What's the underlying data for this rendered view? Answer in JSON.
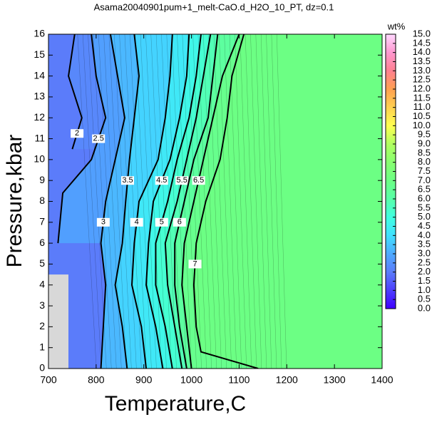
{
  "chart_data": {
    "type": "contour",
    "title": "Asama20040901pum+1_melt-CaO.d_H2O_10_PT, dz=0.1",
    "xlabel": "Temperature,C",
    "ylabel": "Pressure,kbar",
    "xlim": [
      700,
      1400
    ],
    "xticks": [
      700,
      800,
      900,
      1000,
      1100,
      1200,
      1300,
      1400
    ],
    "ylim": [
      0,
      16
    ],
    "yticks": [
      0,
      1,
      2,
      3,
      4,
      5,
      6,
      7,
      8,
      9,
      10,
      11,
      12,
      13,
      14,
      15,
      16
    ],
    "colorbar": {
      "label": "wt%",
      "lim": [
        0,
        15
      ],
      "ticks": [
        {
          "value": 0,
          "label": "0.0"
        },
        0.5,
        {
          "value": 1,
          "label": "1.0"
        },
        1.5,
        {
          "value": 2,
          "label": "2.0"
        },
        2.5,
        {
          "value": 3,
          "label": "3.0"
        },
        3.5,
        {
          "value": 4,
          "label": "4.0"
        },
        4.5,
        {
          "value": 5,
          "label": "5.0"
        },
        5.5,
        {
          "value": 6,
          "label": "6.0"
        },
        6.5,
        {
          "value": 7,
          "label": "7.0"
        },
        7.5,
        {
          "value": 8,
          "label": "8.0"
        },
        8.5,
        {
          "value": 9,
          "label": "9.0"
        },
        9.5,
        {
          "value": 10,
          "label": "10.0"
        },
        10.5,
        {
          "value": 11,
          "label": "11.0"
        },
        11.5,
        {
          "value": 12,
          "label": "12.0"
        },
        12.5,
        {
          "value": 13,
          "label": "13.0"
        },
        13.5,
        {
          "value": 14,
          "label": "14.0"
        },
        14.5,
        {
          "value": 15,
          "label": "15.0"
        }
      ],
      "colormap": [
        [
          0,
          "#4000ff"
        ],
        [
          2,
          "#5b7cfa"
        ],
        [
          3,
          "#4eaaff"
        ],
        [
          4,
          "#40e0ff"
        ],
        [
          5,
          "#40ffe0"
        ],
        [
          6,
          "#58ffa8"
        ],
        [
          7,
          "#6cff84"
        ],
        [
          8,
          "#88ff70"
        ],
        [
          9,
          "#b0ff60"
        ],
        [
          10,
          "#ffff50"
        ],
        [
          11,
          "#ffd050"
        ],
        [
          12,
          "#ffa050"
        ],
        [
          13,
          "#ff8090"
        ],
        [
          14,
          "#ff98d0"
        ],
        [
          15,
          "#ffd8ff"
        ]
      ]
    },
    "contours": [
      {
        "level": 2,
        "T": [
          755,
          742,
          770,
          750
        ],
        "P": [
          16,
          14,
          12,
          10.5
        ]
      },
      {
        "level": 2.5,
        "T": [
          790,
          800,
          820,
          790,
          730,
          720
        ],
        "P": [
          16,
          14,
          12,
          10,
          8.4,
          6
        ]
      },
      {
        "level": 3,
        "T": [
          830,
          845,
          860,
          840,
          820,
          810,
          820,
          815,
          810
        ],
        "P": [
          16,
          14,
          12,
          10,
          8,
          6,
          4,
          2,
          0
        ]
      },
      {
        "level": 3.5,
        "T": [
          880,
          890,
          880,
          870,
          862,
          855,
          840,
          855,
          865
        ],
        "P": [
          16,
          14,
          12,
          10,
          8,
          6,
          4,
          2,
          0
        ]
      },
      {
        "level": 4,
        "T": [
          960,
          955,
          945,
          930,
          890,
          880,
          875,
          895,
          905
        ],
        "P": [
          16,
          14,
          12,
          10,
          8,
          6,
          4,
          2,
          0
        ]
      },
      {
        "level": 4.5,
        "T": [
          995,
          990,
          975,
          955,
          920,
          910,
          905,
          925,
          940
        ],
        "P": [
          16,
          14,
          12,
          10,
          8,
          6,
          4,
          2,
          0
        ]
      },
      {
        "level": 5,
        "T": [
          1020,
          1010,
          995,
          970,
          950,
          925,
          925,
          945,
          960
        ],
        "P": [
          16,
          14,
          12,
          10,
          8,
          6,
          4,
          2,
          0
        ]
      },
      {
        "level": 5.5,
        "T": [
          1040,
          1025,
          1010,
          990,
          970,
          945,
          950,
          965,
          980
        ],
        "P": [
          16,
          14,
          12,
          10,
          8,
          6,
          4,
          2,
          0
        ]
      },
      {
        "level": 6,
        "T": [
          1055,
          1045,
          1035,
          1005,
          985,
          965,
          965,
          975,
          990
        ],
        "P": [
          16,
          14,
          12,
          10,
          8,
          6,
          4,
          2,
          0
        ]
      },
      {
        "level": 6.5,
        "T": [
          1100,
          1065,
          1045,
          1025,
          1005,
          985,
          980,
          990,
          1000
        ],
        "P": [
          16,
          14,
          12,
          10,
          8,
          6,
          4,
          2,
          0
        ]
      },
      {
        "level": 7,
        "T": [
          1110,
          1085,
          1075,
          1060,
          1030,
          1010,
          1005,
          1010,
          1020,
          1140
        ],
        "P": [
          16,
          14,
          12,
          10,
          8,
          6,
          4,
          2,
          0.8,
          0
        ]
      }
    ]
  }
}
